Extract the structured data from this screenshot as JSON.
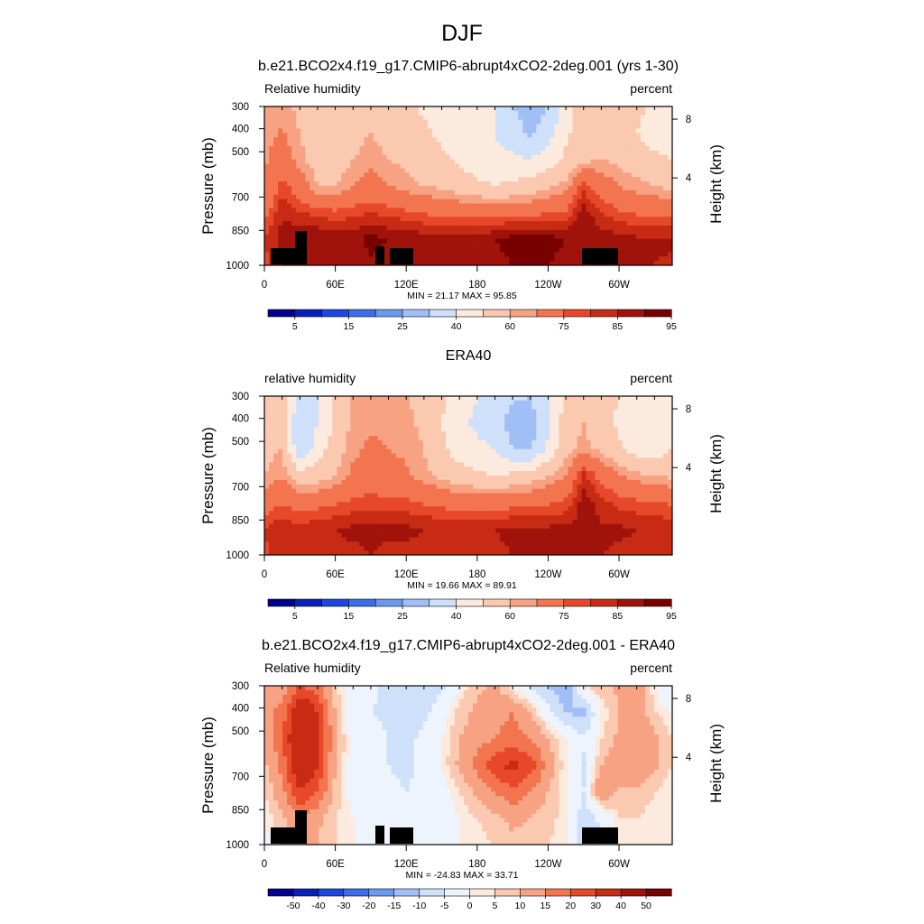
{
  "figure": {
    "title": "DJF"
  },
  "colors": {
    "rh_scale": [
      "#00008c",
      "#0a1fb8",
      "#1d46e0",
      "#3c6ee9",
      "#6b98f1",
      "#a0bff6",
      "#cfe0fa",
      "#fdeadf",
      "#fbc9b0",
      "#f7a283",
      "#f27550",
      "#e7482a",
      "#c82b14",
      "#a0130b",
      "#780000"
    ],
    "diff_scale": [
      "#00008c",
      "#0a1fb8",
      "#1d46e0",
      "#3c6ee9",
      "#6b98f1",
      "#a0bff6",
      "#cfe0fa",
      "#eef4fd",
      "#fdeadf",
      "#fbc9b0",
      "#f7a283",
      "#f27550",
      "#e7482a",
      "#c82b14",
      "#a0130b",
      "#780000"
    ],
    "topography": "#000000"
  },
  "chart_data": [
    {
      "type": "heatmap",
      "title": "b.e21.BCO2x4.f19_g17.CMIP6-abrupt4xCO2-2deg.001 (yrs 1-30)",
      "left_label": "Relative humidity",
      "right_label": "percent",
      "ylabel": "Pressure (mb)",
      "y2label": "Height (km)",
      "x_ticks": [
        "0",
        "60E",
        "120E",
        "180",
        "120W",
        "60W"
      ],
      "x_tick_values": [
        0,
        60,
        120,
        180,
        240,
        300
      ],
      "xlim": [
        0,
        345
      ],
      "y_ticks": [
        "300",
        "400",
        "500",
        "700",
        "850",
        "1000"
      ],
      "y2_ticks": [
        "8",
        "4"
      ],
      "stats": "MIN =  21.17  MAX =  95.85",
      "colorbar_labels": [
        "5",
        "15",
        "25",
        "40",
        "60",
        "75",
        "85",
        "95"
      ],
      "colorbar_scale": "rh_scale",
      "topography": true,
      "field": [
        [
          60,
          62,
          58,
          55,
          54,
          56,
          58,
          55,
          52,
          48,
          46,
          45,
          44,
          40,
          30,
          25,
          30,
          45,
          55,
          58,
          56,
          52,
          48,
          45
        ],
        [
          62,
          66,
          60,
          55,
          53,
          57,
          60,
          57,
          55,
          52,
          48,
          45,
          42,
          40,
          35,
          28,
          35,
          48,
          55,
          58,
          55,
          50,
          45,
          45
        ],
        [
          64,
          70,
          62,
          56,
          54,
          60,
          63,
          60,
          58,
          55,
          52,
          48,
          45,
          42,
          42,
          40,
          45,
          52,
          58,
          60,
          58,
          55,
          52,
          50
        ],
        [
          65,
          78,
          70,
          60,
          60,
          65,
          68,
          65,
          62,
          60,
          58,
          55,
          52,
          50,
          52,
          55,
          58,
          62,
          78,
          70,
          65,
          62,
          60,
          58
        ],
        [
          72,
          84,
          80,
          78,
          76,
          78,
          80,
          78,
          76,
          74,
          72,
          72,
          72,
          72,
          72,
          72,
          74,
          76,
          88,
          80,
          76,
          74,
          73,
          72
        ],
        [
          80,
          88,
          90,
          90,
          88,
          88,
          92,
          90,
          89,
          88,
          88,
          88,
          88,
          90,
          92,
          94,
          92,
          90,
          90,
          88,
          87,
          86,
          86,
          86
        ],
        [
          78,
          85,
          88,
          88,
          87,
          87,
          89,
          88,
          87,
          86,
          86,
          86,
          86,
          88,
          90,
          92,
          90,
          88,
          88,
          86,
          86,
          85,
          85,
          84
        ]
      ]
    },
    {
      "type": "heatmap",
      "title": "ERA40",
      "left_label": "relative humidity",
      "right_label": "percent",
      "ylabel": "Pressure (mb)",
      "y2label": "Height (km)",
      "x_ticks": [
        "0",
        "60E",
        "120E",
        "180",
        "120W",
        "60W"
      ],
      "x_tick_values": [
        0,
        60,
        120,
        180,
        240,
        300
      ],
      "xlim": [
        0,
        345
      ],
      "y_ticks": [
        "300",
        "400",
        "500",
        "700",
        "850",
        "1000"
      ],
      "y2_ticks": [
        "8",
        "4"
      ],
      "stats": "MIN =  19.66  MAX =  89.91",
      "colorbar_labels": [
        "5",
        "15",
        "25",
        "40",
        "60",
        "75",
        "85",
        "95"
      ],
      "colorbar_scale": "rh_scale",
      "topography": false,
      "field": [
        [
          55,
          58,
          38,
          40,
          52,
          60,
          62,
          62,
          60,
          58,
          52,
          45,
          40,
          38,
          32,
          30,
          40,
          52,
          58,
          54,
          50,
          42,
          45,
          50
        ],
        [
          56,
          58,
          28,
          40,
          52,
          62,
          64,
          64,
          62,
          58,
          50,
          42,
          38,
          35,
          25,
          25,
          38,
          55,
          60,
          55,
          48,
          40,
          42,
          48
        ],
        [
          58,
          60,
          30,
          45,
          55,
          64,
          66,
          65,
          64,
          60,
          52,
          45,
          42,
          40,
          30,
          28,
          42,
          58,
          62,
          58,
          52,
          45,
          45,
          50
        ],
        [
          60,
          64,
          55,
          55,
          60,
          66,
          68,
          67,
          66,
          62,
          58,
          55,
          52,
          50,
          52,
          55,
          60,
          65,
          82,
          72,
          66,
          62,
          60,
          58
        ],
        [
          70,
          74,
          70,
          72,
          74,
          76,
          78,
          77,
          76,
          74,
          72,
          70,
          70,
          70,
          72,
          72,
          74,
          76,
          88,
          82,
          78,
          76,
          75,
          74
        ],
        [
          80,
          84,
          82,
          84,
          85,
          86,
          86,
          86,
          86,
          85,
          85,
          85,
          85,
          85,
          86,
          86,
          86,
          86,
          88,
          86,
          86,
          85,
          84,
          84
        ],
        [
          79,
          82,
          80,
          82,
          84,
          84,
          85,
          84,
          84,
          84,
          83,
          83,
          83,
          84,
          85,
          85,
          85,
          85,
          86,
          85,
          84,
          84,
          83,
          83
        ]
      ]
    },
    {
      "type": "heatmap",
      "title": "b.e21.BCO2x4.f19_g17.CMIP6-abrupt4xCO2-2deg.001 - ERA40",
      "left_label": "Relative humidity",
      "right_label": "percent",
      "ylabel": "Pressure (mb)",
      "y2label": "Height (km)",
      "x_ticks": [
        "0",
        "60E",
        "120E",
        "180",
        "120W",
        "60W"
      ],
      "x_tick_values": [
        0,
        60,
        120,
        180,
        240,
        300
      ],
      "xlim": [
        0,
        345
      ],
      "y_ticks": [
        "300",
        "400",
        "500",
        "700",
        "850",
        "1000"
      ],
      "y2_ticks": [
        "8",
        "4"
      ],
      "stats": "MIN = -24.83  MAX =  33.71",
      "colorbar_labels": [
        "-50",
        "-40",
        "-30",
        "-20",
        "-15",
        "-10",
        "-5",
        "0",
        "5",
        "10",
        "15",
        "20",
        "30",
        "40",
        "50"
      ],
      "colorbar_scale": "diff_scale",
      "topography": true,
      "field": [
        [
          5,
          6,
          15,
          12,
          2,
          -2,
          -4,
          -6,
          -8,
          -10,
          -6,
          0,
          4,
          6,
          0,
          -5,
          -10,
          -15,
          2,
          4,
          6,
          10,
          0,
          -5
        ],
        [
          8,
          12,
          28,
          20,
          5,
          -3,
          -5,
          -6,
          -8,
          -6,
          -2,
          3,
          6,
          8,
          10,
          5,
          -3,
          -10,
          -12,
          0,
          5,
          8,
          2,
          0
        ],
        [
          6,
          14,
          30,
          22,
          6,
          -2,
          -3,
          -5,
          -6,
          -4,
          0,
          5,
          8,
          10,
          12,
          10,
          5,
          0,
          -4,
          2,
          6,
          10,
          6,
          2
        ],
        [
          4,
          12,
          28,
          20,
          5,
          -2,
          -4,
          -5,
          -6,
          -4,
          0,
          6,
          12,
          18,
          22,
          18,
          8,
          0,
          -6,
          5,
          8,
          10,
          6,
          2
        ],
        [
          2,
          8,
          20,
          15,
          4,
          -2,
          -3,
          -4,
          -5,
          -4,
          -2,
          2,
          6,
          10,
          14,
          10,
          5,
          0,
          -5,
          10,
          4,
          4,
          2,
          0
        ],
        [
          0,
          4,
          10,
          6,
          2,
          0,
          -2,
          -2,
          -3,
          -3,
          -2,
          0,
          2,
          4,
          6,
          5,
          3,
          1,
          -8,
          -4,
          2,
          2,
          1,
          0
        ],
        [
          -1,
          3,
          8,
          5,
          2,
          0,
          -1,
          -1,
          -2,
          -2,
          -1,
          0,
          1,
          2,
          4,
          3,
          2,
          1,
          -10,
          -5,
          1,
          1,
          0,
          0
        ]
      ]
    }
  ]
}
